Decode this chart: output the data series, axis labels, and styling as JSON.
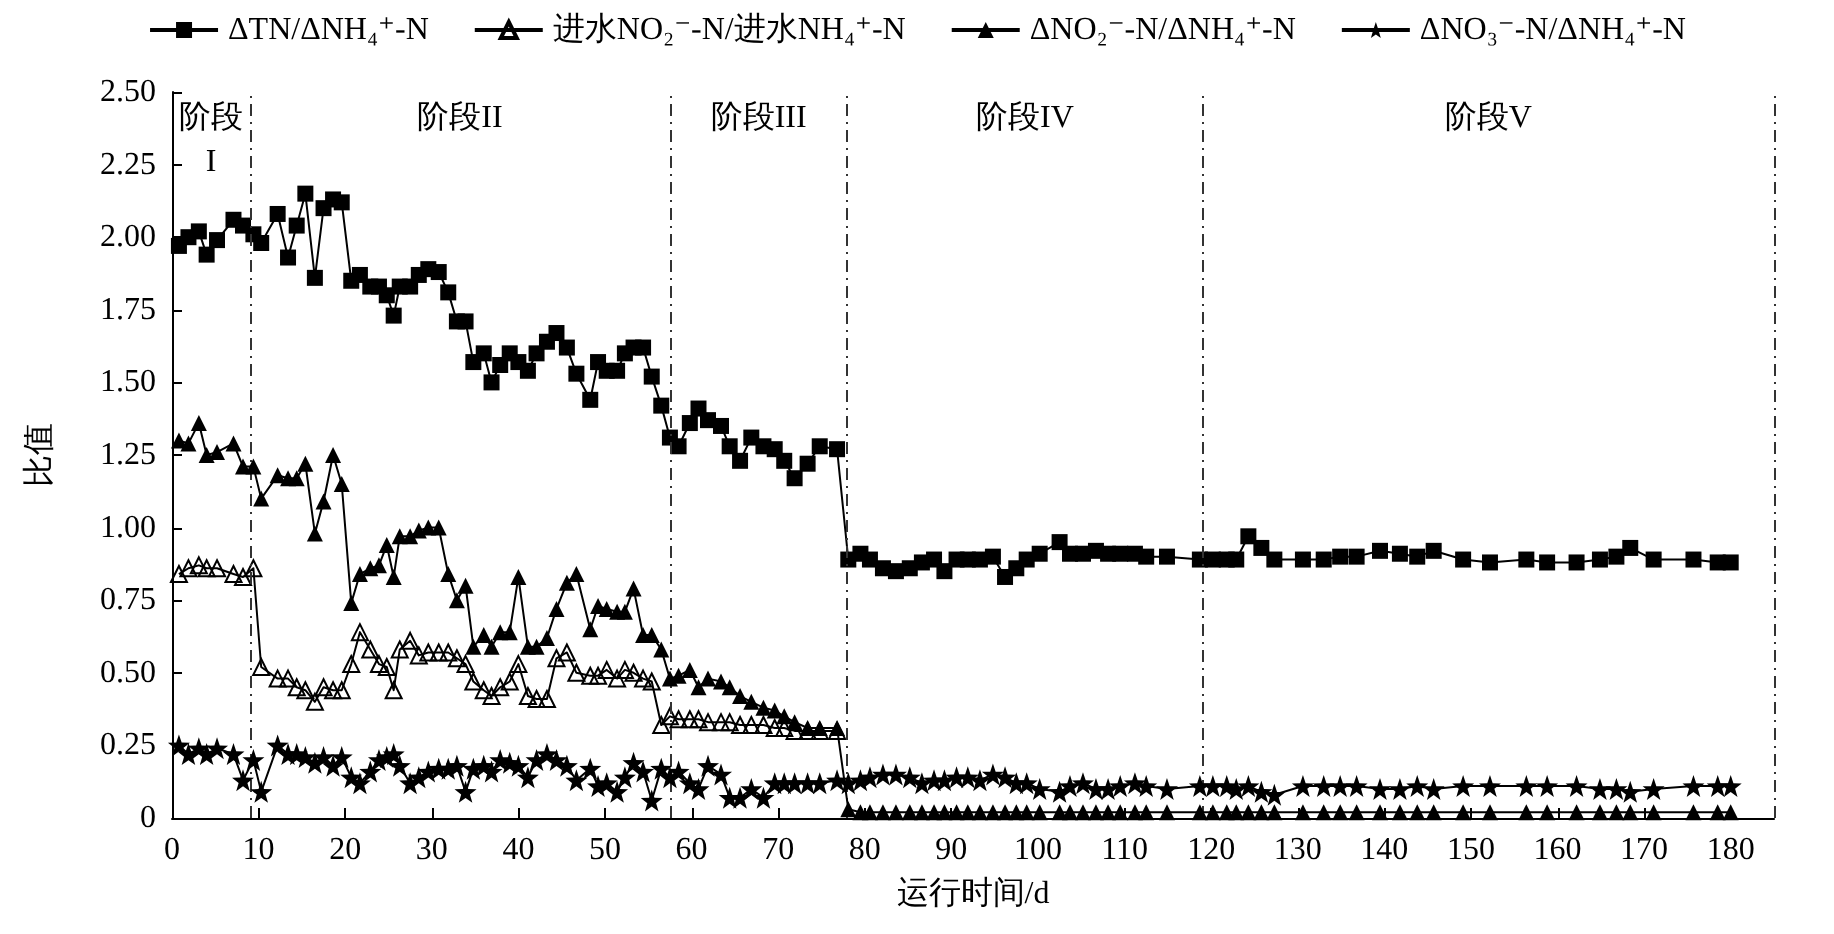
{
  "chart_data": {
    "type": "line",
    "xlabel": "运行时间/d",
    "ylabel": "比值",
    "x": [
      0.8,
      1.9,
      3.1,
      4.0,
      5.2,
      7.1,
      8.2,
      9.4,
      10.3,
      12.2,
      13.4,
      14.4,
      15.4,
      16.5,
      17.5,
      18.6,
      19.6,
      20.7,
      21.7,
      22.9,
      23.9,
      24.8,
      25.6,
      26.3,
      27.5,
      28.5,
      29.6,
      30.8,
      31.9,
      32.9,
      33.9,
      34.8,
      36.0,
      36.9,
      37.9,
      39.0,
      40.0,
      41.1,
      42.1,
      43.3,
      44.4,
      45.6,
      46.7,
      48.3,
      49.2,
      50.2,
      51.4,
      52.3,
      53.3,
      54.4,
      55.4,
      56.5,
      57.5,
      58.5,
      59.8,
      60.8,
      61.9,
      63.4,
      64.4,
      65.6,
      66.9,
      68.3,
      69.6,
      70.7,
      71.9,
      73.4,
      74.8,
      76.8,
      78.1,
      79.5,
      80.6,
      82.1,
      83.6,
      85.2,
      86.6,
      88.0,
      89.2,
      90.6,
      91.9,
      93.3,
      94.8,
      96.2,
      97.5,
      98.7,
      100.2,
      102.5,
      103.7,
      105.2,
      106.7,
      108.1,
      109.5,
      111.2,
      112.5,
      114.9,
      118.7,
      120.2,
      121.8,
      122.9,
      124.3,
      125.8,
      127.3,
      130.6,
      133.0,
      134.9,
      136.8,
      139.5,
      141.8,
      143.8,
      145.7,
      149.1,
      152.2,
      156.4,
      158.8,
      162.2,
      164.9,
      166.8,
      168.4,
      171.1,
      175.7,
      178.5,
      180
    ],
    "series": [
      {
        "name": "ΔTN/ΔNH₄⁺-N",
        "color": "#000000",
        "marker": "square",
        "values": [
          1.97,
          2.0,
          2.02,
          1.94,
          1.99,
          2.06,
          2.04,
          2.01,
          1.98,
          2.08,
          1.93,
          2.04,
          2.15,
          1.86,
          2.1,
          2.13,
          2.12,
          1.85,
          1.87,
          1.83,
          1.83,
          1.8,
          1.73,
          1.83,
          1.83,
          1.87,
          1.89,
          1.88,
          1.81,
          1.71,
          1.71,
          1.57,
          1.6,
          1.5,
          1.56,
          1.6,
          1.57,
          1.54,
          1.6,
          1.64,
          1.67,
          1.62,
          1.53,
          1.44,
          1.57,
          1.54,
          1.54,
          1.6,
          1.62,
          1.62,
          1.52,
          1.42,
          1.31,
          1.28,
          1.36,
          1.41,
          1.37,
          1.35,
          1.28,
          1.23,
          1.31,
          1.28,
          1.27,
          1.23,
          1.17,
          1.22,
          1.28,
          1.27,
          0.89,
          0.91,
          0.89,
          0.86,
          0.85,
          0.86,
          0.88,
          0.89,
          0.85,
          0.89,
          0.89,
          0.89,
          0.9,
          0.83,
          0.86,
          0.89,
          0.91,
          0.95,
          0.91,
          0.91,
          0.92,
          0.91,
          0.91,
          0.91,
          0.9,
          0.9,
          0.89,
          0.89,
          0.89,
          0.89,
          0.97,
          0.93,
          0.89,
          0.89,
          0.89,
          0.9,
          0.9,
          0.92,
          0.91,
          0.9,
          0.92,
          0.89,
          0.88,
          0.89,
          0.88,
          0.88,
          0.89,
          0.9,
          0.93,
          0.89,
          0.89,
          0.88,
          0.88
        ]
      },
      {
        "name": "进水NO₂⁻-N/进水NH₄⁺-N",
        "color": "#000000",
        "marker": "triangle",
        "x": [
          0.8,
          1.9,
          3.1,
          4.0,
          5.2,
          7.1,
          8.2,
          9.4,
          10.3,
          12.2,
          13.4,
          14.4,
          15.4,
          16.5,
          17.5,
          18.6,
          19.6,
          20.7,
          21.7,
          22.9,
          23.9,
          24.8,
          25.6,
          26.3,
          27.5,
          28.5,
          29.6,
          30.8,
          31.9,
          32.9,
          33.9,
          34.8,
          36.0,
          36.9,
          37.9,
          39.0,
          40.0,
          41.1,
          42.1,
          43.3,
          44.4,
          45.6,
          46.7,
          48.3,
          49.2,
          50.2,
          51.4,
          52.3,
          53.3,
          54.4,
          55.4,
          56.5,
          57.5,
          58.5,
          59.8,
          60.8,
          61.9,
          63.4,
          64.4,
          65.6,
          66.9,
          68.3,
          69.6,
          70.7,
          71.9,
          73.4,
          74.8,
          76.8
        ],
        "values": [
          0.84,
          0.86,
          0.87,
          0.86,
          0.86,
          0.84,
          0.83,
          0.86,
          0.52,
          0.48,
          0.48,
          0.45,
          0.44,
          0.4,
          0.45,
          0.44,
          0.44,
          0.53,
          0.64,
          0.58,
          0.53,
          0.52,
          0.44,
          0.58,
          0.61,
          0.56,
          0.57,
          0.57,
          0.57,
          0.55,
          0.53,
          0.47,
          0.44,
          0.42,
          0.45,
          0.47,
          0.53,
          0.42,
          0.41,
          0.41,
          0.55,
          0.57,
          0.5,
          0.49,
          0.49,
          0.51,
          0.48,
          0.51,
          0.5,
          0.48,
          0.47,
          0.32,
          0.35,
          0.34,
          0.34,
          0.34,
          0.33,
          0.33,
          0.33,
          0.32,
          0.32,
          0.32,
          0.31,
          0.31,
          0.3,
          0.3,
          0.3,
          0.3
        ]
      },
      {
        "name": "ΔNO₂⁻-N/ΔNH₄⁺-N",
        "color": "#000000",
        "marker": "triangle",
        "values": [
          1.3,
          1.29,
          1.36,
          1.25,
          1.26,
          1.29,
          1.21,
          1.21,
          1.1,
          1.18,
          1.17,
          1.17,
          1.22,
          0.98,
          1.09,
          1.25,
          1.15,
          0.74,
          0.84,
          0.86,
          0.87,
          0.94,
          0.83,
          0.97,
          0.97,
          0.99,
          1.0,
          1.0,
          0.84,
          0.75,
          0.8,
          0.59,
          0.63,
          0.59,
          0.64,
          0.64,
          0.83,
          0.59,
          0.59,
          0.62,
          0.72,
          0.81,
          0.84,
          0.65,
          0.73,
          0.72,
          0.71,
          0.71,
          0.79,
          0.63,
          0.63,
          0.58,
          0.48,
          0.49,
          0.51,
          0.45,
          0.48,
          0.47,
          0.45,
          0.42,
          0.4,
          0.38,
          0.37,
          0.35,
          0.33,
          0.31,
          0.31,
          0.31,
          0.03,
          0.02,
          0.02,
          0.02,
          0.02,
          0.02,
          0.02,
          0.02,
          0.02,
          0.02,
          0.02,
          0.02,
          0.02,
          0.02,
          0.02,
          0.02,
          0.02,
          0.02,
          0.02,
          0.02,
          0.02,
          0.02,
          0.02,
          0.02,
          0.02,
          0.02,
          0.02,
          0.02,
          0.02,
          0.02,
          0.02,
          0.02,
          0.02,
          0.02,
          0.02,
          0.02,
          0.02,
          0.02,
          0.02,
          0.02,
          0.02,
          0.02,
          0.02,
          0.02,
          0.02,
          0.02,
          0.02,
          0.02,
          0.02,
          0.02,
          0.02,
          0.02,
          0.02
        ]
      },
      {
        "name": "ΔNO₃⁻-N/ΔNH₄⁺-N",
        "color": "#000000",
        "marker": "star",
        "values": [
          0.25,
          0.22,
          0.24,
          0.22,
          0.24,
          0.22,
          0.13,
          0.2,
          0.09,
          0.25,
          0.22,
          0.22,
          0.21,
          0.19,
          0.21,
          0.18,
          0.21,
          0.14,
          0.12,
          0.16,
          0.2,
          0.21,
          0.22,
          0.18,
          0.12,
          0.14,
          0.16,
          0.17,
          0.17,
          0.18,
          0.09,
          0.17,
          0.18,
          0.16,
          0.2,
          0.19,
          0.18,
          0.14,
          0.2,
          0.22,
          0.2,
          0.18,
          0.13,
          0.17,
          0.11,
          0.12,
          0.09,
          0.14,
          0.19,
          0.16,
          0.06,
          0.17,
          0.14,
          0.16,
          0.12,
          0.1,
          0.18,
          0.15,
          0.07,
          0.07,
          0.1,
          0.07,
          0.12,
          0.12,
          0.12,
          0.12,
          0.12,
          0.13,
          0.12,
          0.13,
          0.14,
          0.15,
          0.15,
          0.14,
          0.12,
          0.13,
          0.13,
          0.14,
          0.14,
          0.13,
          0.15,
          0.14,
          0.12,
          0.12,
          0.1,
          0.09,
          0.11,
          0.12,
          0.1,
          0.1,
          0.11,
          0.12,
          0.11,
          0.1,
          0.11,
          0.11,
          0.11,
          0.1,
          0.11,
          0.09,
          0.08,
          0.11,
          0.11,
          0.11,
          0.11,
          0.1,
          0.1,
          0.11,
          0.1,
          0.11,
          0.11,
          0.11,
          0.11,
          0.11,
          0.1,
          0.1,
          0.09,
          0.1,
          0.11,
          0.11,
          0.11
        ]
      }
    ],
    "xlim": [
      0,
      185
    ],
    "xticks": [
      0,
      10,
      20,
      30,
      40,
      50,
      60,
      70,
      80,
      90,
      100,
      110,
      120,
      130,
      140,
      150,
      160,
      170,
      180
    ],
    "ylim": [
      0,
      2.5
    ],
    "yticks": [
      0,
      0.25,
      {
        "value": 0.5,
        "label": "0.50"
      },
      {
        "value": 0.75,
        "label": "0.75"
      },
      {
        "value": 1,
        "label": "1.00"
      },
      {
        "value": 1.25,
        "label": "1.25"
      },
      {
        "value": 1.5,
        "label": "1.50"
      },
      {
        "value": 1.75,
        "label": "1.75"
      },
      {
        "value": 2,
        "label": "2.00"
      },
      {
        "value": 2.25,
        "label": "2.25"
      },
      {
        "value": 2.5,
        "label": "2.50"
      }
    ],
    "ref_lines": [
      {
        "axis": "x",
        "value": 9,
        "line_style": "dashed"
      },
      {
        "axis": "x",
        "value": 57.5,
        "line_style": "dashed"
      },
      {
        "axis": "x",
        "value": 78,
        "line_style": "dashed"
      },
      {
        "axis": "x",
        "value": 119,
        "line_style": "dashed"
      },
      {
        "axis": "x",
        "value": 185,
        "line_style": "dashed"
      }
    ],
    "annotations": [
      "阶段\nI",
      "阶段II",
      "阶段III",
      "阶段IV",
      "阶段V"
    ],
    "grid": false,
    "legend": "top",
    "line_style": "solid"
  }
}
